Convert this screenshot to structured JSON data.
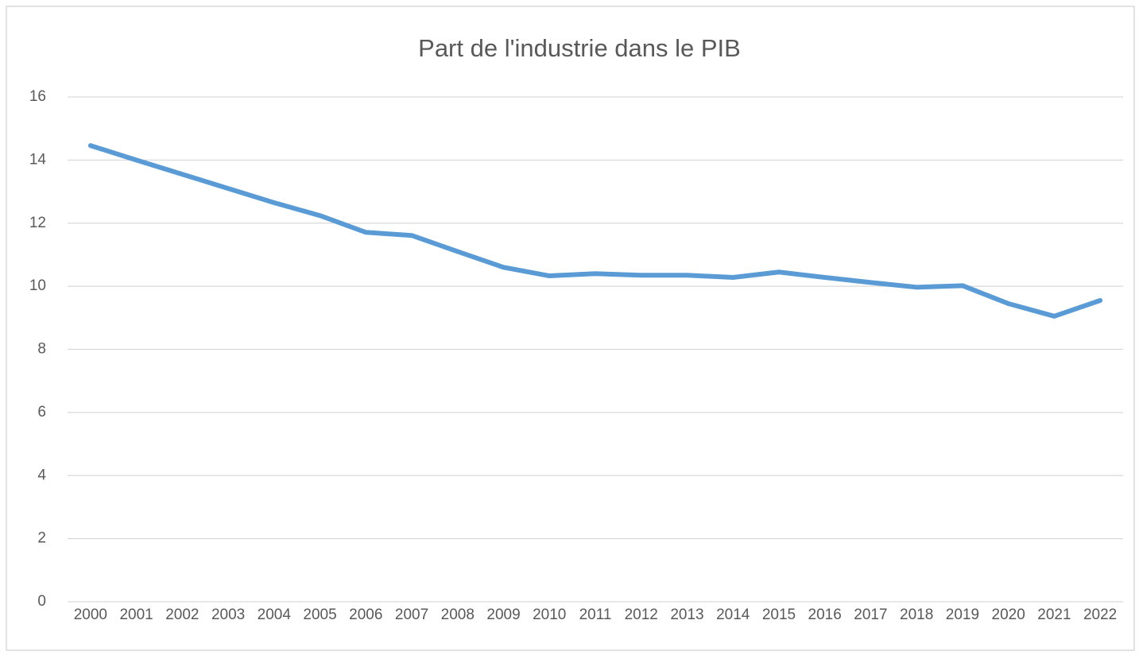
{
  "chart_data": {
    "type": "line",
    "title": "Part de l'industrie dans le PIB",
    "categories": [
      "2000",
      "2001",
      "2002",
      "2003",
      "2004",
      "2005",
      "2006",
      "2007",
      "2008",
      "2009",
      "2010",
      "2011",
      "2012",
      "2013",
      "2014",
      "2015",
      "2016",
      "2017",
      "2018",
      "2019",
      "2020",
      "2021",
      "2022"
    ],
    "values": [
      14.46,
      14.0,
      13.55,
      13.1,
      12.65,
      12.24,
      11.71,
      11.61,
      11.1,
      10.6,
      10.33,
      10.4,
      10.35,
      10.35,
      10.28,
      10.45,
      10.28,
      10.12,
      9.97,
      10.02,
      9.45,
      9.05,
      9.55
    ],
    "color": "#5b9bd5",
    "ylim": [
      0,
      16
    ],
    "yticks": [
      0,
      2,
      4,
      6,
      8,
      10,
      12,
      14,
      16
    ],
    "grid": true
  }
}
